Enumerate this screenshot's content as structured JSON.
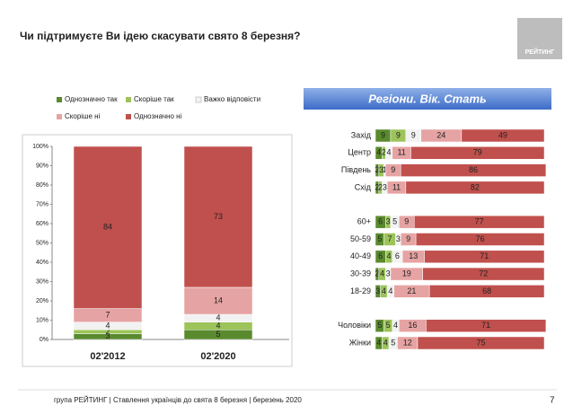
{
  "page": {
    "title": "Чи підтримуєте Ви ідею скасувати свято 8 березня?",
    "logo": "РЕЙТИНГ",
    "footer": "група РЕЙТИНГ | Ставлення українців до свята 8 березня  | березень 2020",
    "page_number": "7"
  },
  "chart_data": [
    {
      "type": "stacked_bar",
      "categories": [
        "02'2012",
        "02'2020"
      ],
      "ylim": [
        0,
        100
      ],
      "yticks": [
        {
          "value": 0,
          "label": "0%"
        },
        {
          "value": 10,
          "label": "10%"
        },
        {
          "value": 20,
          "label": "20%"
        },
        {
          "value": 30,
          "label": "30%"
        },
        {
          "value": 40,
          "label": "40%"
        },
        {
          "value": 50,
          "label": "50%"
        },
        {
          "value": 60,
          "label": "60%"
        },
        {
          "value": 70,
          "label": "70%"
        },
        {
          "value": 80,
          "label": "80%"
        },
        {
          "value": 90,
          "label": "90%"
        },
        {
          "value": 100,
          "label": "100%"
        }
      ],
      "series": [
        {
          "name": "Однозначно так",
          "color": "#5a8a2e",
          "values": [
            3,
            5
          ]
        },
        {
          "name": "Скоріше так",
          "color": "#9cc45a",
          "values": [
            2,
            4
          ]
        },
        {
          "name": "Важко відповісти",
          "color": "#f2f2f2",
          "values": [
            4,
            4
          ]
        },
        {
          "name": "Скоріше ні",
          "color": "#e6a3a3",
          "values": [
            7,
            14
          ]
        },
        {
          "name": "Однозначно ні",
          "color": "#c0504d",
          "values": [
            84,
            73
          ]
        }
      ]
    },
    {
      "type": "stacked_barh",
      "title": "Регіони. Вік. Стать",
      "xlim": [
        0,
        100
      ],
      "categories": [
        "Захід",
        "Центр",
        "Південь",
        "Схід",
        "60+",
        "50-59",
        "40-49",
        "30-39",
        "18-29",
        "Чоловіки",
        "Жінки"
      ],
      "series": [
        {
          "color": "#5a8a2e",
          "values": [
            9,
            4,
            2,
            2,
            6,
            5,
            6,
            2,
            3,
            5,
            4
          ]
        },
        {
          "color": "#9cc45a",
          "values": [
            9,
            2,
            3,
            2,
            3,
            7,
            4,
            4,
            4,
            5,
            4
          ]
        },
        {
          "color": "#f2f2f2",
          "values": [
            9,
            4,
            1,
            3,
            5,
            3,
            6,
            3,
            4,
            4,
            5
          ]
        },
        {
          "color": "#e6a3a3",
          "values": [
            24,
            11,
            9,
            11,
            9,
            9,
            13,
            19,
            21,
            16,
            12
          ]
        },
        {
          "color": "#c0504d",
          "values": [
            49,
            79,
            86,
            82,
            77,
            76,
            71,
            72,
            68,
            71,
            75
          ]
        }
      ]
    }
  ]
}
